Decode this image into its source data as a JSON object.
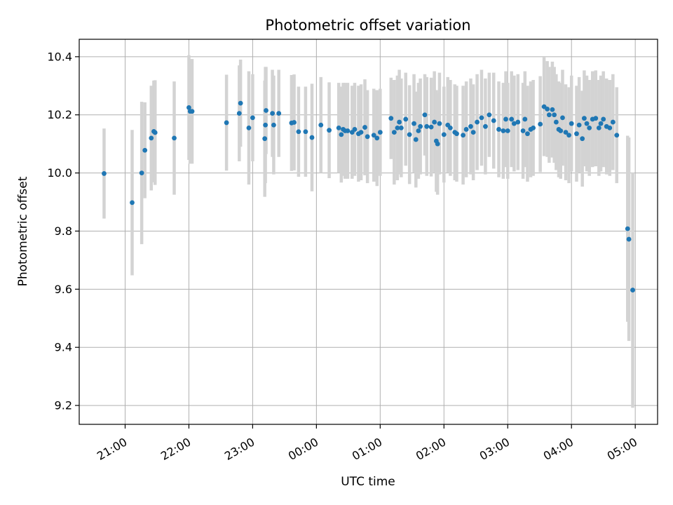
{
  "chart_data": {
    "type": "scatter",
    "title": "Photometric offset variation",
    "xlabel": "UTC time",
    "ylabel": "Photometric offset",
    "xlim": [
      -0.72,
      8.35
    ],
    "ylim": [
      9.135,
      10.46
    ],
    "grid": true,
    "x_ticks": [
      {
        "x": 0,
        "label": "21:00"
      },
      {
        "x": 1,
        "label": "22:00"
      },
      {
        "x": 2,
        "label": "23:00"
      },
      {
        "x": 3,
        "label": "00:00"
      },
      {
        "x": 4,
        "label": "01:00"
      },
      {
        "x": 5,
        "label": "02:00"
      },
      {
        "x": 6,
        "label": "03:00"
      },
      {
        "x": 7,
        "label": "04:00"
      },
      {
        "x": 8,
        "label": "05:00"
      }
    ],
    "y_ticks": [
      {
        "y": 9.2,
        "label": "9.2"
      },
      {
        "y": 9.4,
        "label": "9.4"
      },
      {
        "y": 9.6,
        "label": "9.6"
      },
      {
        "y": 9.8,
        "label": "9.8"
      },
      {
        "y": 10.0,
        "label": "10.0"
      },
      {
        "y": 10.2,
        "label": "10.2"
      },
      {
        "y": 10.4,
        "label": "10.4"
      }
    ],
    "marker_color": "#1f77b4",
    "errorbar_color": "#d3d3d3",
    "points": [
      [
        -0.33,
        9.998,
        0.155
      ],
      [
        0.11,
        9.898,
        0.25
      ],
      [
        0.26,
        10.0,
        0.245
      ],
      [
        0.31,
        10.078,
        0.165
      ],
      [
        0.41,
        10.12,
        0.18
      ],
      [
        0.45,
        10.143,
        0.175
      ],
      [
        0.47,
        10.139,
        0.18
      ],
      [
        0.77,
        10.12,
        0.195
      ],
      [
        1.0,
        10.225,
        0.18
      ],
      [
        1.02,
        10.212,
        0.18
      ],
      [
        1.05,
        10.212,
        0.18
      ],
      [
        1.59,
        10.173,
        0.165
      ],
      [
        1.79,
        10.205,
        0.165
      ],
      [
        1.81,
        10.24,
        0.15
      ],
      [
        1.94,
        10.155,
        0.195
      ],
      [
        2.0,
        10.19,
        0.15
      ],
      [
        2.19,
        10.118,
        0.2
      ],
      [
        2.2,
        10.165,
        0.2
      ],
      [
        2.21,
        10.215,
        0.15
      ],
      [
        2.31,
        10.205,
        0.15
      ],
      [
        2.33,
        10.165,
        0.17
      ],
      [
        2.41,
        10.205,
        0.15
      ],
      [
        2.61,
        10.172,
        0.165
      ],
      [
        2.65,
        10.174,
        0.165
      ],
      [
        2.72,
        10.142,
        0.155
      ],
      [
        2.83,
        10.142,
        0.155
      ],
      [
        2.93,
        10.122,
        0.185
      ],
      [
        3.07,
        10.165,
        0.165
      ],
      [
        3.2,
        10.147,
        0.165
      ],
      [
        3.35,
        10.155,
        0.155
      ],
      [
        3.39,
        10.132,
        0.165
      ],
      [
        3.42,
        10.15,
        0.16
      ],
      [
        3.45,
        10.145,
        0.165
      ],
      [
        3.49,
        10.145,
        0.165
      ],
      [
        3.56,
        10.14,
        0.16
      ],
      [
        3.6,
        10.15,
        0.16
      ],
      [
        3.66,
        10.135,
        0.165
      ],
      [
        3.7,
        10.14,
        0.165
      ],
      [
        3.76,
        10.157,
        0.165
      ],
      [
        3.8,
        10.125,
        0.16
      ],
      [
        3.9,
        10.13,
        0.16
      ],
      [
        3.95,
        10.12,
        0.165
      ],
      [
        4.0,
        10.14,
        0.15
      ],
      [
        4.17,
        10.188,
        0.14
      ],
      [
        4.22,
        10.14,
        0.18
      ],
      [
        4.27,
        10.155,
        0.18
      ],
      [
        4.3,
        10.175,
        0.18
      ],
      [
        4.33,
        10.155,
        0.17
      ],
      [
        4.4,
        10.185,
        0.16
      ],
      [
        4.46,
        10.132,
        0.17
      ],
      [
        4.53,
        10.17,
        0.17
      ],
      [
        4.56,
        10.115,
        0.165
      ],
      [
        4.6,
        10.145,
        0.165
      ],
      [
        4.63,
        10.16,
        0.165
      ],
      [
        4.7,
        10.2,
        0.14
      ],
      [
        4.73,
        10.16,
        0.17
      ],
      [
        4.8,
        10.158,
        0.17
      ],
      [
        4.85,
        10.175,
        0.175
      ],
      [
        4.88,
        10.11,
        0.175
      ],
      [
        4.9,
        10.1,
        0.175
      ],
      [
        4.93,
        10.17,
        0.175
      ],
      [
        5.0,
        10.132,
        0.165
      ],
      [
        5.06,
        10.165,
        0.165
      ],
      [
        5.1,
        10.155,
        0.165
      ],
      [
        5.17,
        10.14,
        0.165
      ],
      [
        5.2,
        10.135,
        0.165
      ],
      [
        5.3,
        10.13,
        0.17
      ],
      [
        5.35,
        10.15,
        0.165
      ],
      [
        5.42,
        10.16,
        0.165
      ],
      [
        5.46,
        10.14,
        0.165
      ],
      [
        5.52,
        10.175,
        0.165
      ],
      [
        5.59,
        10.19,
        0.165
      ],
      [
        5.65,
        10.16,
        0.165
      ],
      [
        5.71,
        10.2,
        0.145
      ],
      [
        5.78,
        10.18,
        0.165
      ],
      [
        5.86,
        10.15,
        0.165
      ],
      [
        5.93,
        10.145,
        0.165
      ],
      [
        5.97,
        10.185,
        0.165
      ],
      [
        6.0,
        10.145,
        0.165
      ],
      [
        6.06,
        10.185,
        0.165
      ],
      [
        6.1,
        10.17,
        0.165
      ],
      [
        6.16,
        10.175,
        0.165
      ],
      [
        6.24,
        10.145,
        0.165
      ],
      [
        6.27,
        10.185,
        0.165
      ],
      [
        6.31,
        10.135,
        0.165
      ],
      [
        6.36,
        10.15,
        0.165
      ],
      [
        6.4,
        10.155,
        0.165
      ],
      [
        6.51,
        10.168,
        0.165
      ],
      [
        6.57,
        10.228,
        0.17
      ],
      [
        6.62,
        10.22,
        0.165
      ],
      [
        6.65,
        10.2,
        0.165
      ],
      [
        6.7,
        10.218,
        0.165
      ],
      [
        6.73,
        10.2,
        0.165
      ],
      [
        6.76,
        10.175,
        0.165
      ],
      [
        6.8,
        10.15,
        0.165
      ],
      [
        6.83,
        10.145,
        0.165
      ],
      [
        6.86,
        10.19,
        0.165
      ],
      [
        6.91,
        10.14,
        0.165
      ],
      [
        6.96,
        10.13,
        0.165
      ],
      [
        7.0,
        10.17,
        0.165
      ],
      [
        7.08,
        10.135,
        0.165
      ],
      [
        7.12,
        10.165,
        0.165
      ],
      [
        7.17,
        10.118,
        0.165
      ],
      [
        7.2,
        10.188,
        0.165
      ],
      [
        7.24,
        10.17,
        0.165
      ],
      [
        7.28,
        10.155,
        0.165
      ],
      [
        7.33,
        10.185,
        0.165
      ],
      [
        7.38,
        10.188,
        0.165
      ],
      [
        7.43,
        10.155,
        0.165
      ],
      [
        7.46,
        10.17,
        0.165
      ],
      [
        7.5,
        10.185,
        0.165
      ],
      [
        7.55,
        10.16,
        0.165
      ],
      [
        7.6,
        10.155,
        0.165
      ],
      [
        7.65,
        10.175,
        0.165
      ],
      [
        7.71,
        10.13,
        0.165
      ],
      [
        7.88,
        9.808,
        0.32
      ],
      [
        7.9,
        9.772,
        0.35
      ],
      [
        7.96,
        9.597,
        0.405
      ]
    ]
  }
}
